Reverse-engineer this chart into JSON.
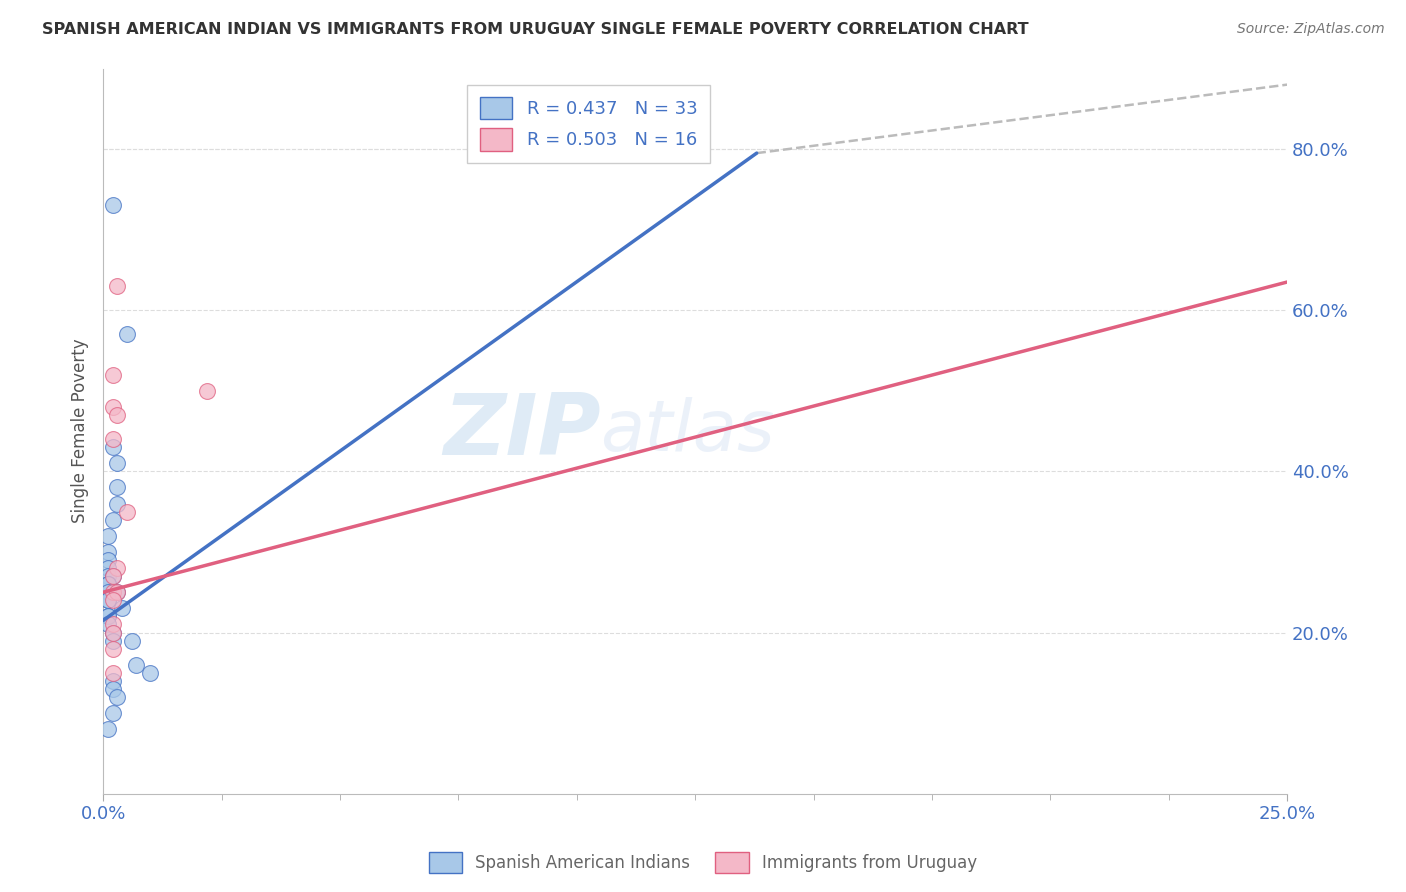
{
  "title": "SPANISH AMERICAN INDIAN VS IMMIGRANTS FROM URUGUAY SINGLE FEMALE POVERTY CORRELATION CHART",
  "source": "Source: ZipAtlas.com",
  "ylabel": "Single Female Poverty",
  "blue_R": 0.437,
  "blue_N": 33,
  "pink_R": 0.503,
  "pink_N": 16,
  "blue_color": "#A8C8E8",
  "pink_color": "#F4B8C8",
  "blue_edge_color": "#4472C4",
  "pink_edge_color": "#E06080",
  "blue_line_color": "#4472C4",
  "pink_line_color": "#E06080",
  "dashed_line_color": "#BBBBBB",
  "watermark_zip": "ZIP",
  "watermark_atlas": "atlas",
  "blue_scatter_x": [
    0.002,
    0.005,
    0.002,
    0.003,
    0.003,
    0.003,
    0.002,
    0.001,
    0.001,
    0.001,
    0.001,
    0.001,
    0.002,
    0.001,
    0.001,
    0.003,
    0.001,
    0.001,
    0.001,
    0.004,
    0.001,
    0.001,
    0.001,
    0.002,
    0.002,
    0.006,
    0.007,
    0.01,
    0.002,
    0.002,
    0.003,
    0.002,
    0.001
  ],
  "blue_scatter_y": [
    0.73,
    0.57,
    0.43,
    0.41,
    0.38,
    0.36,
    0.34,
    0.32,
    0.3,
    0.29,
    0.28,
    0.27,
    0.27,
    0.26,
    0.26,
    0.25,
    0.25,
    0.24,
    0.24,
    0.23,
    0.22,
    0.22,
    0.21,
    0.2,
    0.19,
    0.19,
    0.16,
    0.15,
    0.14,
    0.13,
    0.12,
    0.1,
    0.08
  ],
  "pink_scatter_x": [
    0.003,
    0.002,
    0.002,
    0.003,
    0.002,
    0.005,
    0.003,
    0.002,
    0.002,
    0.003,
    0.002,
    0.002,
    0.002,
    0.002,
    0.022,
    0.002
  ],
  "pink_scatter_y": [
    0.63,
    0.52,
    0.48,
    0.47,
    0.44,
    0.35,
    0.28,
    0.27,
    0.25,
    0.25,
    0.24,
    0.21,
    0.2,
    0.18,
    0.5,
    0.15
  ],
  "blue_line_x": [
    0.0,
    0.138
  ],
  "blue_line_y": [
    0.215,
    0.795
  ],
  "dashed_line_x": [
    0.138,
    0.25
  ],
  "dashed_line_y": [
    0.795,
    0.88
  ],
  "pink_line_x": [
    0.0,
    0.25
  ],
  "pink_line_y": [
    0.25,
    0.635
  ],
  "xlim": [
    0.0,
    0.25
  ],
  "ylim": [
    0.0,
    0.9
  ],
  "xticks": [
    0.0,
    0.25
  ],
  "xtick_labels": [
    "0.0%",
    "25.0%"
  ],
  "yticks": [
    0.2,
    0.4,
    0.6,
    0.8
  ],
  "ytick_labels": [
    "20.0%",
    "40.0%",
    "60.0%",
    "80.0%"
  ],
  "background_color": "#FFFFFF",
  "title_color": "#333333",
  "source_color": "#777777",
  "tick_color": "#4472C4",
  "ylabel_color": "#555555",
  "grid_color": "#DDDDDD",
  "legend_label_blue": "R = 0.437   N = 33",
  "legend_label_pink": "R = 0.503   N = 16",
  "bottom_label_blue": "Spanish American Indians",
  "bottom_label_pink": "Immigrants from Uruguay"
}
